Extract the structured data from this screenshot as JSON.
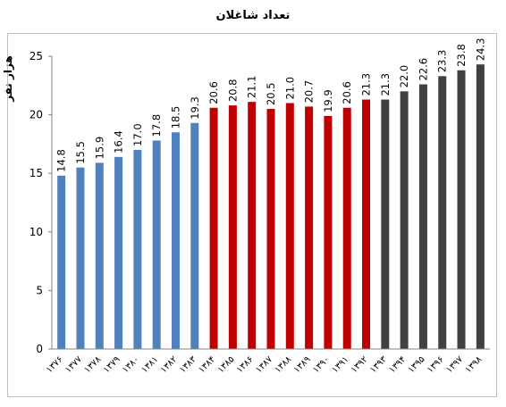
{
  "chart_data": {
    "type": "bar",
    "title": "تعداد شاغلان",
    "ylabel": "هزار نفر",
    "xlabel": "",
    "ylim": [
      0,
      25
    ],
    "yticks": [
      0,
      5,
      10,
      15,
      20,
      25
    ],
    "grid": false,
    "categories": [
      "۱۳۷۶",
      "۱۳۷۷",
      "۱۳۷۸",
      "۱۳۷۹",
      "۱۳۸۰",
      "۱۳۸۱",
      "۱۳۸۲",
      "۱۳۸۳",
      "۱۳۸۴",
      "۱۳۸۵",
      "۱۳۸۶",
      "۱۳۸۷",
      "۱۳۸۸",
      "۱۳۸۹",
      "۱۳۹۰",
      "۱۳۹۱",
      "۱۳۹۲",
      "۱۳۹۳",
      "۱۳۹۴",
      "۱۳۹۵",
      "۱۳۹۶",
      "۱۳۹۷",
      "۱۳۹۸"
    ],
    "values": [
      14.8,
      15.5,
      15.9,
      16.4,
      17.0,
      17.8,
      18.5,
      19.3,
      20.6,
      20.8,
      21.1,
      20.5,
      21.0,
      20.7,
      19.9,
      20.6,
      21.3,
      21.3,
      22.0,
      22.6,
      23.3,
      23.8,
      24.3
    ],
    "value_labels": [
      "14.8",
      "15.5",
      "15.9",
      "16.4",
      "17.0",
      "17.8",
      "18.5",
      "19.3",
      "20.6",
      "20.8",
      "21.1",
      "20.5",
      "21.0",
      "20.7",
      "19.9",
      "20.6",
      "21.3",
      "21.3",
      "22.0",
      "22.6",
      "23.3",
      "23.8",
      "24.3"
    ],
    "bar_colors": [
      "#4f81bd",
      "#4f81bd",
      "#4f81bd",
      "#4f81bd",
      "#4f81bd",
      "#4f81bd",
      "#4f81bd",
      "#4f81bd",
      "#c00000",
      "#c00000",
      "#c00000",
      "#c00000",
      "#c00000",
      "#c00000",
      "#c00000",
      "#c00000",
      "#c00000",
      "#404040",
      "#404040",
      "#404040",
      "#404040",
      "#404040",
      "#404040"
    ]
  }
}
